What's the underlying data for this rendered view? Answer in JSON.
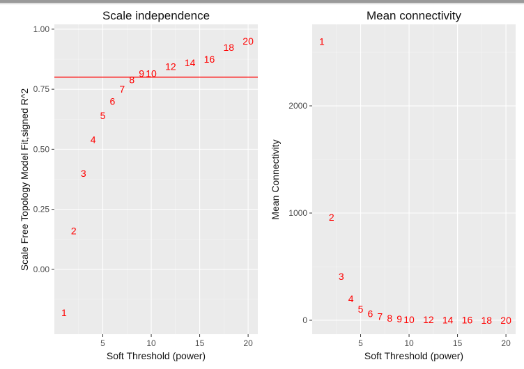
{
  "accent_color": "#ff0000",
  "chart_data": [
    {
      "type": "scatter",
      "title": "Scale independence",
      "xlabel": "Soft Threshold (power)",
      "ylabel": "Scale Free Topology Model Fit,signed R^2",
      "xlim": [
        0,
        21
      ],
      "ylim": [
        -0.27,
        1.02
      ],
      "x_ticks": [
        5,
        10,
        15,
        20
      ],
      "y_ticks": [
        0.0,
        0.25,
        0.5,
        0.75,
        1.0
      ],
      "x_tick_labels": [
        "5",
        "10",
        "15",
        "20"
      ],
      "y_tick_labels": [
        "0.00",
        "0.25",
        "0.50",
        "0.75",
        "1.00"
      ],
      "hline": 0.8,
      "grid": true,
      "points": [
        {
          "label": "1",
          "x": 1,
          "y": -0.18
        },
        {
          "label": "2",
          "x": 2,
          "y": 0.16
        },
        {
          "label": "3",
          "x": 3,
          "y": 0.4
        },
        {
          "label": "4",
          "x": 4,
          "y": 0.54
        },
        {
          "label": "5",
          "x": 5,
          "y": 0.64
        },
        {
          "label": "6",
          "x": 6,
          "y": 0.7
        },
        {
          "label": "7",
          "x": 7,
          "y": 0.75
        },
        {
          "label": "8",
          "x": 8,
          "y": 0.79
        },
        {
          "label": "9",
          "x": 9,
          "y": 0.815
        },
        {
          "label": "10",
          "x": 10,
          "y": 0.815
        },
        {
          "label": "12",
          "x": 12,
          "y": 0.845
        },
        {
          "label": "14",
          "x": 14,
          "y": 0.86
        },
        {
          "label": "16",
          "x": 16,
          "y": 0.875
        },
        {
          "label": "18",
          "x": 18,
          "y": 0.925
        },
        {
          "label": "20",
          "x": 20,
          "y": 0.95
        }
      ]
    },
    {
      "type": "scatter",
      "title": "Mean connectivity",
      "xlabel": "Soft Threshold (power)",
      "ylabel": "Mean Connectivity",
      "xlim": [
        0,
        21
      ],
      "ylim": [
        -130,
        2760
      ],
      "x_ticks": [
        5,
        10,
        15,
        20
      ],
      "y_ticks": [
        0,
        1000,
        2000
      ],
      "x_tick_labels": [
        "5",
        "10",
        "15",
        "20"
      ],
      "y_tick_labels": [
        "0",
        "1000",
        "2000"
      ],
      "grid": true,
      "points": [
        {
          "label": "1",
          "x": 1,
          "y": 2600
        },
        {
          "label": "2",
          "x": 2,
          "y": 960
        },
        {
          "label": "3",
          "x": 3,
          "y": 410
        },
        {
          "label": "4",
          "x": 4,
          "y": 200
        },
        {
          "label": "5",
          "x": 5,
          "y": 105
        },
        {
          "label": "6",
          "x": 6,
          "y": 60
        },
        {
          "label": "7",
          "x": 7,
          "y": 35
        },
        {
          "label": "8",
          "x": 8,
          "y": 20
        },
        {
          "label": "9",
          "x": 9,
          "y": 12
        },
        {
          "label": "10",
          "x": 10,
          "y": 8
        },
        {
          "label": "12",
          "x": 12,
          "y": 5
        },
        {
          "label": "14",
          "x": 14,
          "y": 3
        },
        {
          "label": "16",
          "x": 16,
          "y": 2
        },
        {
          "label": "18",
          "x": 18,
          "y": 1
        },
        {
          "label": "20",
          "x": 20,
          "y": 1
        }
      ]
    }
  ]
}
